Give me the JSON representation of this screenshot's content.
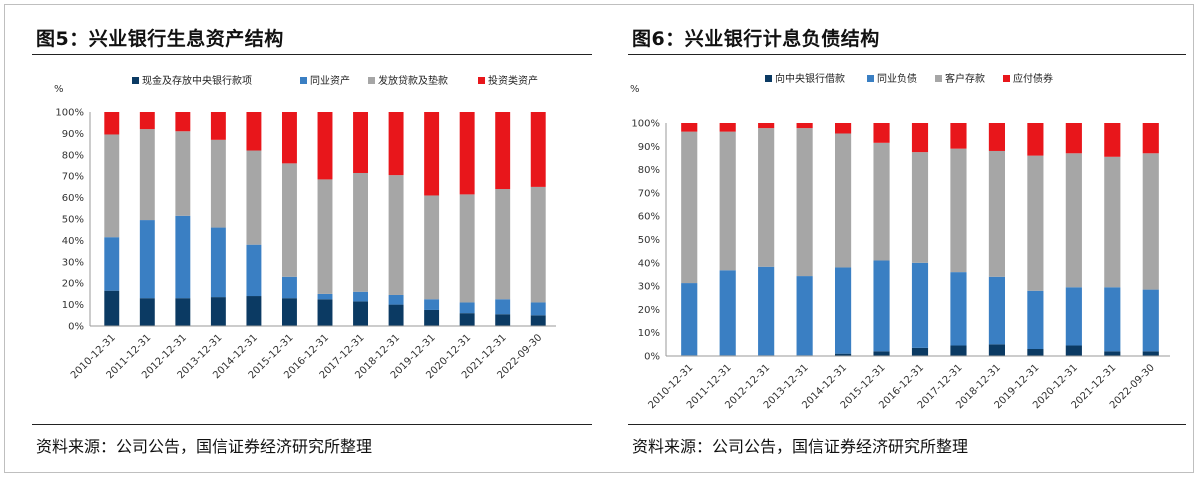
{
  "left": {
    "title": "图5：兴业银行生息资产结构",
    "source": "资料来源：公司公告，国信证券经济研究所整理"
  },
  "right": {
    "title": "图6：兴业银行计息负债结构",
    "source": "资料来源：公司公告，国信证券经济研究所整理"
  },
  "chart_data": [
    {
      "type": "bar",
      "stacked": true,
      "y_unit_label": "%",
      "ylim": [
        0,
        100
      ],
      "yticks": [
        "0%",
        "10%",
        "20%",
        "30%",
        "40%",
        "50%",
        "60%",
        "70%",
        "80%",
        "90%",
        "100%"
      ],
      "categories": [
        "2010-12-31",
        "2011-12-31",
        "2012-12-31",
        "2013-12-31",
        "2014-12-31",
        "2015-12-31",
        "2016-12-31",
        "2017-12-31",
        "2018-12-31",
        "2019-12-31",
        "2020-12-31",
        "2021-12-31",
        "2022-09-30"
      ],
      "legend_position": "top",
      "series": [
        {
          "name": "现金及存放中央银行款项",
          "color": "#0b3a63",
          "values": [
            16.5,
            13,
            13,
            13.5,
            14,
            13,
            12.5,
            11.5,
            10,
            7.5,
            6,
            5.5,
            5
          ]
        },
        {
          "name": "同业资产",
          "color": "#3a7fc3",
          "values": [
            25,
            36.5,
            38.5,
            32.5,
            24,
            10,
            2.5,
            4.5,
            4.5,
            5,
            5,
            7,
            6
          ]
        },
        {
          "name": "发放贷款及垫款",
          "color": "#a6a6a6",
          "values": [
            48,
            42.5,
            39.5,
            41,
            44,
            53,
            53.5,
            55.5,
            56,
            48.5,
            50.5,
            51.5,
            54
          ]
        },
        {
          "name": "投资类资产",
          "color": "#e8161b",
          "values": [
            10.5,
            8,
            9,
            13,
            18,
            24,
            31.5,
            28.5,
            29.5,
            39,
            38.5,
            36,
            35
          ]
        }
      ]
    },
    {
      "type": "bar",
      "stacked": true,
      "y_unit_label": "%",
      "ylim": [
        0,
        100
      ],
      "yticks": [
        "0%",
        "10%",
        "20%",
        "30%",
        "40%",
        "50%",
        "60%",
        "70%",
        "80%",
        "90%",
        "100%"
      ],
      "categories": [
        "2010-12-31",
        "2011-12-31",
        "2012-12-31",
        "2013-12-31",
        "2014-12-31",
        "2015-12-31",
        "2016-12-31",
        "2017-12-31",
        "2018-12-31",
        "2019-12-31",
        "2020-12-31",
        "2021-12-31",
        "2022-09-30"
      ],
      "legend_position": "top",
      "series": [
        {
          "name": "向中央银行借款",
          "color": "#0b3a63",
          "values": [
            0.3,
            0.3,
            0.3,
            0.3,
            1,
            2,
            3.5,
            4.5,
            5,
            3,
            4.5,
            2,
            2
          ]
        },
        {
          "name": "同业负债",
          "color": "#3a7fc3",
          "values": [
            31,
            36.5,
            38,
            34,
            37,
            39,
            36.5,
            31.5,
            29,
            25,
            25,
            27.5,
            26.5
          ]
        },
        {
          "name": "客户存款",
          "color": "#a6a6a6",
          "values": [
            65,
            59.5,
            59.5,
            63.5,
            57.5,
            50.5,
            47.5,
            53,
            54,
            58,
            57.5,
            56,
            58.5
          ]
        },
        {
          "name": "应付债券",
          "color": "#e8161b",
          "values": [
            3.7,
            3.7,
            2.2,
            2.2,
            4.5,
            8.5,
            12.5,
            11,
            12,
            14,
            13,
            14.5,
            13
          ]
        }
      ]
    }
  ]
}
